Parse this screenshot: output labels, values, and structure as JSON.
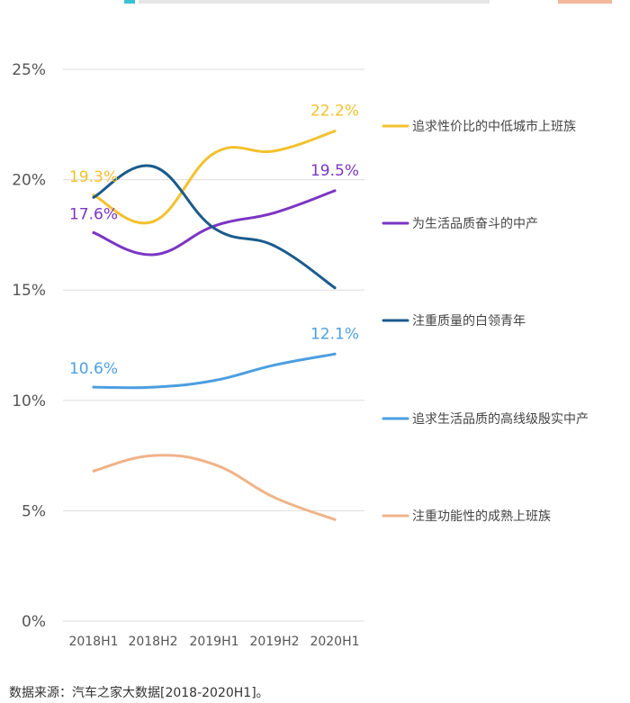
{
  "chart_data": {
    "type": "line",
    "categories": [
      "2018H1",
      "2018H2",
      "2019H1",
      "2019H2",
      "2020H1"
    ],
    "y_ticks": [
      "0%",
      "5%",
      "10%",
      "15%",
      "20%",
      "25%"
    ],
    "ylim": [
      0,
      25
    ],
    "grid": true,
    "legend_position": "right",
    "series": [
      {
        "name": "追求性价比的中低城市上班族",
        "color": "#f2c12e",
        "values": [
          19.3,
          18.1,
          21.2,
          21.3,
          22.2
        ],
        "labels": [
          {
            "index": 0,
            "text": "19.3%"
          },
          {
            "index": 4,
            "text": "22.2%"
          }
        ]
      },
      {
        "name": "为生活品质奋斗的中产",
        "color": "#7b35c4",
        "values": [
          17.6,
          16.6,
          17.9,
          18.5,
          19.5
        ],
        "labels": [
          {
            "index": 0,
            "text": "17.6%"
          },
          {
            "index": 4,
            "text": "19.5%"
          }
        ]
      },
      {
        "name": "注重质量的白领青年",
        "color": "#1a5b8c",
        "values": [
          19.2,
          20.6,
          17.8,
          17.0,
          15.1
        ],
        "labels": []
      },
      {
        "name": "追求生活品质的高线级殷实中产",
        "color": "#4c9ee0",
        "values": [
          10.6,
          10.6,
          10.9,
          11.6,
          12.1
        ],
        "labels": [
          {
            "index": 0,
            "text": "10.6%"
          },
          {
            "index": 4,
            "text": "12.1%"
          }
        ]
      },
      {
        "name": "注重功能性的成熟上班族",
        "color": "#efb388",
        "values": [
          6.8,
          7.5,
          7.1,
          5.6,
          4.6
        ],
        "labels": []
      }
    ]
  },
  "source_text": "数据来源：汽车之家大数据[2018-2020H1]。"
}
